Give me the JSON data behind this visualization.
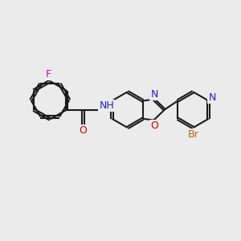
{
  "background_color": "#ebebeb",
  "bond_color": "#1a1a1a",
  "bond_width": 1.5,
  "dbo": 0.055,
  "atoms": {
    "F": {
      "color": "#cc00cc"
    },
    "N": {
      "color": "#2222cc"
    },
    "O": {
      "color": "#cc0000"
    },
    "Br": {
      "color": "#bb6600"
    },
    "H": {
      "color": "#555555"
    }
  },
  "fontsize": 8.5,
  "fig_w": 3.0,
  "fig_h": 3.0,
  "dpi": 100,
  "xlim": [
    0,
    10
  ],
  "ylim": [
    0,
    10
  ]
}
